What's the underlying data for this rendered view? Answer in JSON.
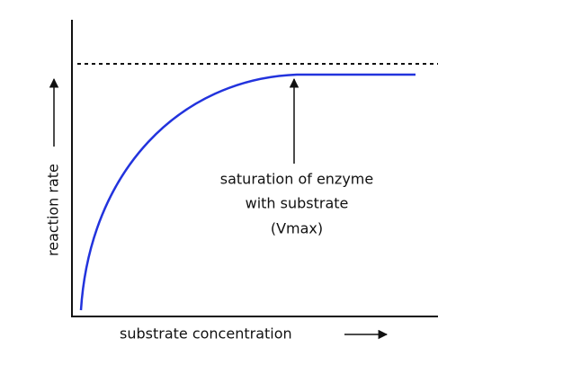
{
  "axes": {
    "x_label": "substrate concentration",
    "y_label": "reaction rate"
  },
  "annotation": {
    "lines": [
      "saturation of enzyme",
      "with substrate",
      "(Vmax)"
    ]
  }
}
